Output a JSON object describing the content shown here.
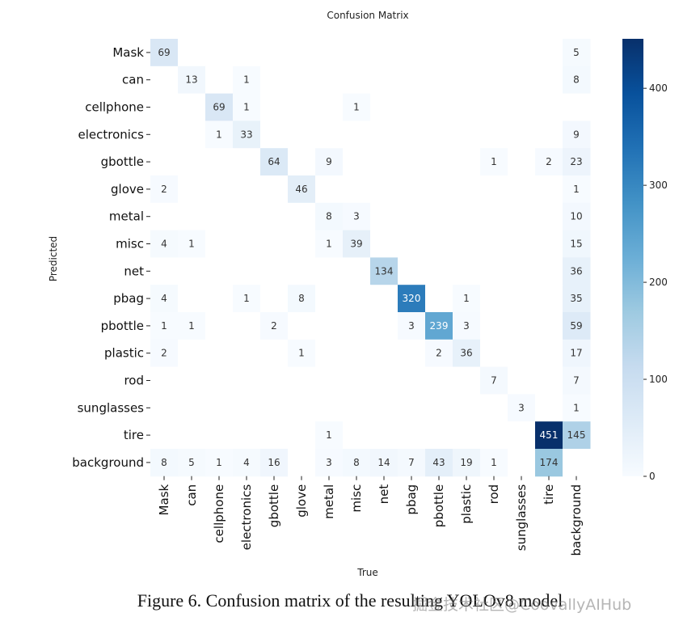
{
  "caption": "Figure 6.  Confusion matrix of the resulting YOLOv8 model",
  "watermark": "掘金技术社区@CoovallyAIHub",
  "chart_data": {
    "type": "heatmap",
    "title": "Confusion Matrix",
    "xlabel": "True",
    "ylabel": "Predicted",
    "rows": [
      "Mask",
      "can",
      "cellphone",
      "electronics",
      "gbottle",
      "glove",
      "metal",
      "misc",
      "net",
      "pbag",
      "pbottle",
      "plastic",
      "rod",
      "sunglasses",
      "tire",
      "background"
    ],
    "cols": [
      "Mask",
      "can",
      "cellphone",
      "electronics",
      "gbottle",
      "glove",
      "metal",
      "misc",
      "net",
      "pbag",
      "pbottle",
      "plastic",
      "rod",
      "sunglasses",
      "tire",
      "background"
    ],
    "values": [
      [
        69,
        0,
        0,
        0,
        0,
        0,
        0,
        0,
        0,
        0,
        0,
        0,
        0,
        0,
        0,
        5
      ],
      [
        0,
        13,
        0,
        1,
        0,
        0,
        0,
        0,
        0,
        0,
        0,
        0,
        0,
        0,
        0,
        8
      ],
      [
        0,
        0,
        69,
        1,
        0,
        0,
        0,
        1,
        0,
        0,
        0,
        0,
        0,
        0,
        0,
        0
      ],
      [
        0,
        0,
        1,
        33,
        0,
        0,
        0,
        0,
        0,
        0,
        0,
        0,
        0,
        0,
        0,
        9
      ],
      [
        0,
        0,
        0,
        0,
        64,
        0,
        9,
        0,
        0,
        0,
        0,
        0,
        1,
        0,
        2,
        23
      ],
      [
        2,
        0,
        0,
        0,
        0,
        46,
        0,
        0,
        0,
        0,
        0,
        0,
        0,
        0,
        0,
        1
      ],
      [
        0,
        0,
        0,
        0,
        0,
        0,
        8,
        3,
        0,
        0,
        0,
        0,
        0,
        0,
        0,
        10
      ],
      [
        4,
        1,
        0,
        0,
        0,
        0,
        1,
        39,
        0,
        0,
        0,
        0,
        0,
        0,
        0,
        15
      ],
      [
        0,
        0,
        0,
        0,
        0,
        0,
        0,
        0,
        134,
        0,
        0,
        0,
        0,
        0,
        0,
        36
      ],
      [
        4,
        0,
        0,
        1,
        0,
        8,
        0,
        0,
        0,
        320,
        0,
        1,
        0,
        0,
        0,
        35
      ],
      [
        1,
        1,
        0,
        0,
        2,
        0,
        0,
        0,
        0,
        3,
        239,
        3,
        0,
        0,
        0,
        59
      ],
      [
        2,
        0,
        0,
        0,
        0,
        1,
        0,
        0,
        0,
        0,
        2,
        36,
        0,
        0,
        0,
        17
      ],
      [
        0,
        0,
        0,
        0,
        0,
        0,
        0,
        0,
        0,
        0,
        0,
        0,
        7,
        0,
        0,
        7
      ],
      [
        0,
        0,
        0,
        0,
        0,
        0,
        0,
        0,
        0,
        0,
        0,
        0,
        0,
        3,
        0,
        1
      ],
      [
        0,
        0,
        0,
        0,
        0,
        0,
        1,
        0,
        0,
        0,
        0,
        0,
        0,
        0,
        451,
        145
      ],
      [
        8,
        5,
        1,
        4,
        16,
        0,
        3,
        8,
        14,
        7,
        43,
        19,
        1,
        0,
        174,
        0
      ]
    ],
    "colorbar": {
      "min": 0,
      "max": 451,
      "ticks": [
        0,
        100,
        200,
        300,
        400
      ]
    },
    "colors": {
      "low": "#f7fbff",
      "high": "#08306b",
      "text_dark": "#333333",
      "text_light": "#ffffff"
    }
  }
}
